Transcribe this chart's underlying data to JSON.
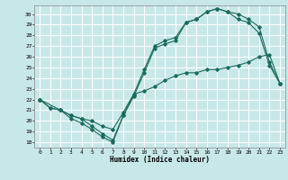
{
  "xlabel": "Humidex (Indice chaleur)",
  "bg_color": "#c8e8e8",
  "grid_color": "#ffffff",
  "line_color": "#1a6b5a",
  "xlim": [
    -0.5,
    23.5
  ],
  "ylim": [
    17.5,
    30.8
  ],
  "yticks": [
    18,
    19,
    20,
    21,
    22,
    23,
    24,
    25,
    26,
    27,
    28,
    29,
    30
  ],
  "xticks": [
    0,
    1,
    2,
    3,
    4,
    5,
    6,
    7,
    8,
    9,
    10,
    11,
    12,
    13,
    14,
    15,
    16,
    17,
    18,
    19,
    20,
    21,
    22,
    23
  ],
  "series1_x": [
    0,
    1,
    2,
    3,
    4,
    5,
    6,
    7,
    8,
    9,
    10,
    11,
    12,
    13,
    14,
    15,
    16,
    17,
    18,
    19,
    20,
    21,
    22,
    23
  ],
  "series1_y": [
    22,
    21.2,
    21,
    20.2,
    19.8,
    19.2,
    18.5,
    18,
    20.5,
    22.3,
    24.5,
    26.8,
    27.2,
    27.5,
    29.2,
    29.5,
    30.2,
    30.5,
    30.2,
    29.5,
    29.2,
    28.2,
    25.2,
    23.5
  ],
  "series2_x": [
    0,
    1,
    2,
    3,
    4,
    5,
    6,
    7,
    8,
    9,
    10,
    11,
    12,
    13,
    14,
    15,
    16,
    17,
    18,
    19,
    20,
    21,
    22,
    23
  ],
  "series2_y": [
    22,
    21.2,
    21,
    20.5,
    20.2,
    19.5,
    18.8,
    18.2,
    20.5,
    22.5,
    24.8,
    27,
    27.5,
    27.8,
    29.2,
    29.5,
    30.2,
    30.5,
    30.2,
    30,
    29.5,
    28.8,
    25.5,
    23.5
  ],
  "series3_x": [
    0,
    2,
    3,
    4,
    5,
    6,
    7,
    8,
    9,
    10,
    11,
    12,
    13,
    14,
    15,
    16,
    17,
    18,
    19,
    20,
    21,
    22,
    23
  ],
  "series3_y": [
    22,
    21,
    20.5,
    20.2,
    20,
    19.5,
    19.2,
    20.8,
    22.5,
    22.8,
    23.2,
    23.8,
    24.2,
    24.5,
    24.5,
    24.8,
    24.8,
    25,
    25.2,
    25.5,
    26,
    26.2,
    23.5
  ]
}
